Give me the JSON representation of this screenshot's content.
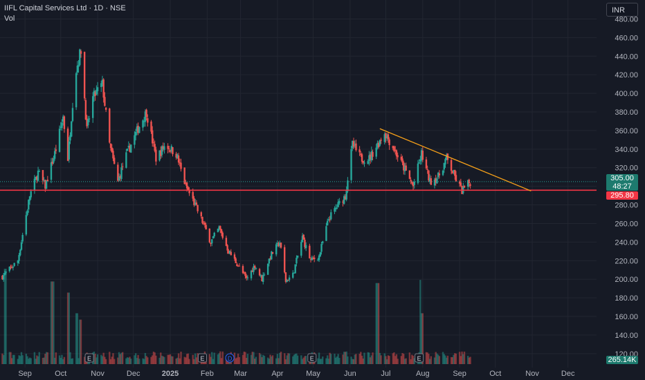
{
  "header": {
    "title": "IIFL Capital Services Ltd · 1D · NSE",
    "sub": "Vol"
  },
  "currency_button": "INR",
  "price_tag": {
    "last": "305.00",
    "countdown": "48:27",
    "support": "295.80"
  },
  "volume_tag": "265.14K",
  "colors": {
    "up": "#26a69a",
    "down": "#ef5350",
    "support": "#f23645",
    "trend": "#f6a019",
    "bg": "#161a25",
    "grid": "#222631"
  },
  "chart_data": {
    "type": "candlestick",
    "title": "IIFL Capital Services Ltd · 1D · NSE",
    "ylim": [
      105,
      490
    ],
    "y_ticks": [
      120,
      140,
      160,
      180,
      200,
      220,
      240,
      260,
      280,
      300,
      320,
      340,
      360,
      380,
      400,
      420,
      440,
      460,
      480
    ],
    "x_ticks": [
      "Sep",
      "Oct",
      "Nov",
      "Dec",
      "2025",
      "Feb",
      "Mar",
      "Apr",
      "May",
      "Jun",
      "Jul",
      "Aug",
      "Sep",
      "Oct",
      "Nov",
      "Dec"
    ],
    "x_tick_dates": [
      "2024-09-01",
      "2024-10-01",
      "2024-11-01",
      "2024-12-01",
      "2025-01-01",
      "2025-02-01",
      "2025-03-01",
      "2025-04-01",
      "2025-05-01",
      "2025-06-01",
      "2025-07-01",
      "2025-08-01",
      "2025-09-01",
      "2025-10-01",
      "2025-11-01",
      "2025-12-01"
    ],
    "price_keypoints": [
      {
        "date": "2024-08-13",
        "price": 203
      },
      {
        "date": "2024-08-26",
        "price": 220
      },
      {
        "date": "2024-09-05",
        "price": 290
      },
      {
        "date": "2024-09-12",
        "price": 315
      },
      {
        "date": "2024-09-18",
        "price": 300
      },
      {
        "date": "2024-09-27",
        "price": 340
      },
      {
        "date": "2024-10-03",
        "price": 375
      },
      {
        "date": "2024-10-07",
        "price": 330
      },
      {
        "date": "2024-10-13",
        "price": 420
      },
      {
        "date": "2024-10-18",
        "price": 447
      },
      {
        "date": "2024-10-23",
        "price": 360
      },
      {
        "date": "2024-10-28",
        "price": 395
      },
      {
        "date": "2024-11-02",
        "price": 405
      },
      {
        "date": "2024-11-05",
        "price": 410
      },
      {
        "date": "2024-11-11",
        "price": 345
      },
      {
        "date": "2024-11-18",
        "price": 305
      },
      {
        "date": "2024-11-24",
        "price": 330
      },
      {
        "date": "2024-11-29",
        "price": 345
      },
      {
        "date": "2024-12-06",
        "price": 365
      },
      {
        "date": "2024-12-12",
        "price": 380
      },
      {
        "date": "2024-12-20",
        "price": 330
      },
      {
        "date": "2024-12-28",
        "price": 345
      },
      {
        "date": "2025-01-06",
        "price": 335
      },
      {
        "date": "2025-01-14",
        "price": 300
      },
      {
        "date": "2025-01-20",
        "price": 285
      },
      {
        "date": "2025-01-27",
        "price": 265
      },
      {
        "date": "2025-02-04",
        "price": 240
      },
      {
        "date": "2025-02-11",
        "price": 255
      },
      {
        "date": "2025-02-19",
        "price": 230
      },
      {
        "date": "2025-02-27",
        "price": 215
      },
      {
        "date": "2025-03-06",
        "price": 200
      },
      {
        "date": "2025-03-13",
        "price": 215
      },
      {
        "date": "2025-03-19",
        "price": 200
      },
      {
        "date": "2025-03-26",
        "price": 225
      },
      {
        "date": "2025-04-03",
        "price": 240
      },
      {
        "date": "2025-04-08",
        "price": 198
      },
      {
        "date": "2025-04-14",
        "price": 205
      },
      {
        "date": "2025-04-22",
        "price": 245
      },
      {
        "date": "2025-04-29",
        "price": 220
      },
      {
        "date": "2025-05-06",
        "price": 225
      },
      {
        "date": "2025-05-14",
        "price": 265
      },
      {
        "date": "2025-05-22",
        "price": 280
      },
      {
        "date": "2025-05-28",
        "price": 290
      },
      {
        "date": "2025-06-03",
        "price": 345
      },
      {
        "date": "2025-06-10",
        "price": 330
      },
      {
        "date": "2025-06-17",
        "price": 330
      },
      {
        "date": "2025-06-24",
        "price": 345
      },
      {
        "date": "2025-06-30",
        "price": 358
      },
      {
        "date": "2025-07-08",
        "price": 340
      },
      {
        "date": "2025-07-16",
        "price": 320
      },
      {
        "date": "2025-07-24",
        "price": 300
      },
      {
        "date": "2025-07-31",
        "price": 335
      },
      {
        "date": "2025-08-07",
        "price": 305
      },
      {
        "date": "2025-08-14",
        "price": 310
      },
      {
        "date": "2025-08-21",
        "price": 330
      },
      {
        "date": "2025-08-28",
        "price": 310
      },
      {
        "date": "2025-09-03",
        "price": 295
      },
      {
        "date": "2025-09-10",
        "price": 305
      }
    ],
    "support_level": 295.8,
    "last_price": 305.0,
    "trendline": [
      {
        "date": "2025-06-26",
        "price": 362
      },
      {
        "date": "2025-10-31",
        "price": 295
      }
    ],
    "volume_spikes": [
      {
        "date": "2024-08-16",
        "rel": 0.6
      },
      {
        "date": "2024-09-24",
        "rel": 0.52
      },
      {
        "date": "2024-10-07",
        "rel": 0.45
      },
      {
        "date": "2024-10-14",
        "rel": 0.32
      },
      {
        "date": "2024-10-18",
        "rel": 0.28
      },
      {
        "date": "2025-06-24",
        "rel": 0.51
      },
      {
        "date": "2025-07-31",
        "rel": 0.53
      },
      {
        "date": "2025-08-01",
        "rel": 0.32
      }
    ],
    "event_markers": [
      {
        "date": "2024-10-25",
        "label": "E"
      },
      {
        "date": "2025-01-28",
        "label": "E"
      },
      {
        "date": "2025-02-20",
        "label": "D"
      },
      {
        "date": "2025-04-30",
        "label": "E"
      },
      {
        "date": "2025-07-29",
        "label": "E"
      }
    ]
  }
}
